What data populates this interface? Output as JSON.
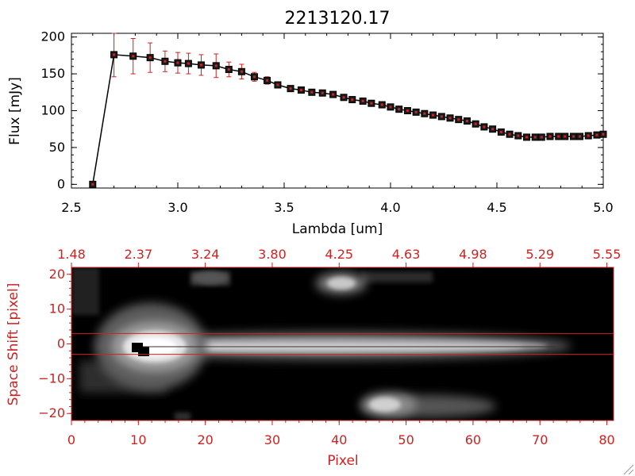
{
  "colors": {
    "black": "#000000",
    "red": "#cc2222",
    "marker_fill": "#1a1a1a",
    "image_bg": "#000000"
  },
  "chart_data": [
    {
      "type": "line",
      "title": "2213120.17",
      "xlabel": "Lambda [um]",
      "ylabel": "Flux [mJy]",
      "xlim": [
        2.5,
        5.0
      ],
      "ylim": [
        -5,
        205
      ],
      "x_ticks": [
        2.5,
        3.0,
        3.5,
        4.0,
        4.5,
        5.0
      ],
      "x_tick_labels": [
        "2.5",
        "3.0",
        "3.5",
        "4.0",
        "4.5",
        "5.0"
      ],
      "y_ticks": [
        0,
        50,
        100,
        150,
        200
      ],
      "y_tick_labels": [
        "0",
        "50",
        "100",
        "150",
        "200"
      ],
      "grid": false,
      "series": [
        {
          "marker": "square",
          "error_color": "#cc2222",
          "x": [
            2.6,
            2.7,
            2.79,
            2.87,
            2.94,
            3.0,
            3.05,
            3.11,
            3.18,
            3.24,
            3.3,
            3.36,
            3.42,
            3.47,
            3.53,
            3.58,
            3.63,
            3.68,
            3.73,
            3.78,
            3.82,
            3.87,
            3.91,
            3.96,
            4.0,
            4.04,
            4.08,
            4.12,
            4.16,
            4.2,
            4.24,
            4.28,
            4.32,
            4.36,
            4.4,
            4.44,
            4.48,
            4.52,
            4.56,
            4.6,
            4.64,
            4.68,
            4.71,
            4.75,
            4.79,
            4.82,
            4.86,
            4.89,
            4.93,
            4.97,
            5.0
          ],
          "y": [
            0,
            176,
            174,
            172,
            167,
            165,
            164,
            162,
            161,
            156,
            153,
            146,
            141,
            135,
            130,
            128,
            125,
            124,
            122,
            118,
            115,
            113,
            110,
            108,
            105,
            102,
            100,
            98,
            96,
            94,
            92,
            90,
            88,
            86,
            82,
            78,
            75,
            71,
            68,
            66,
            64,
            64,
            64,
            65,
            65,
            65,
            65,
            65,
            66,
            67,
            68
          ],
          "yerr": [
            0,
            30,
            24,
            20,
            14,
            14,
            14,
            14,
            16,
            10,
            10,
            6,
            5,
            4,
            4,
            3,
            3,
            3,
            3,
            3,
            3,
            3,
            3,
            3,
            3,
            3,
            3,
            3,
            3,
            3,
            3,
            3,
            3,
            3,
            3,
            3,
            3,
            3,
            3,
            3,
            3,
            3,
            3,
            3,
            3,
            3,
            3,
            3,
            3,
            3,
            3
          ]
        }
      ]
    },
    {
      "type": "heatmap",
      "xlabel": "Pixel",
      "ylabel": "Space Shift [pixel]",
      "xlim": [
        0,
        81
      ],
      "ylim": [
        -22,
        22
      ],
      "x_ticks": [
        0,
        10,
        20,
        30,
        40,
        50,
        60,
        70,
        80
      ],
      "x_tick_labels": [
        "0",
        "10",
        "20",
        "30",
        "40",
        "50",
        "60",
        "70",
        "80"
      ],
      "y_ticks": [
        -20,
        -10,
        0,
        10,
        20
      ],
      "y_tick_labels": [
        "−20",
        "−10",
        "0",
        "10",
        "20"
      ],
      "top_axis_labels": [
        "1.48",
        "2.37",
        "3.24",
        "3.80",
        "4.25",
        "4.63",
        "4.98",
        "5.29",
        "5.55"
      ],
      "extraction_window": [
        -3,
        3
      ]
    }
  ]
}
